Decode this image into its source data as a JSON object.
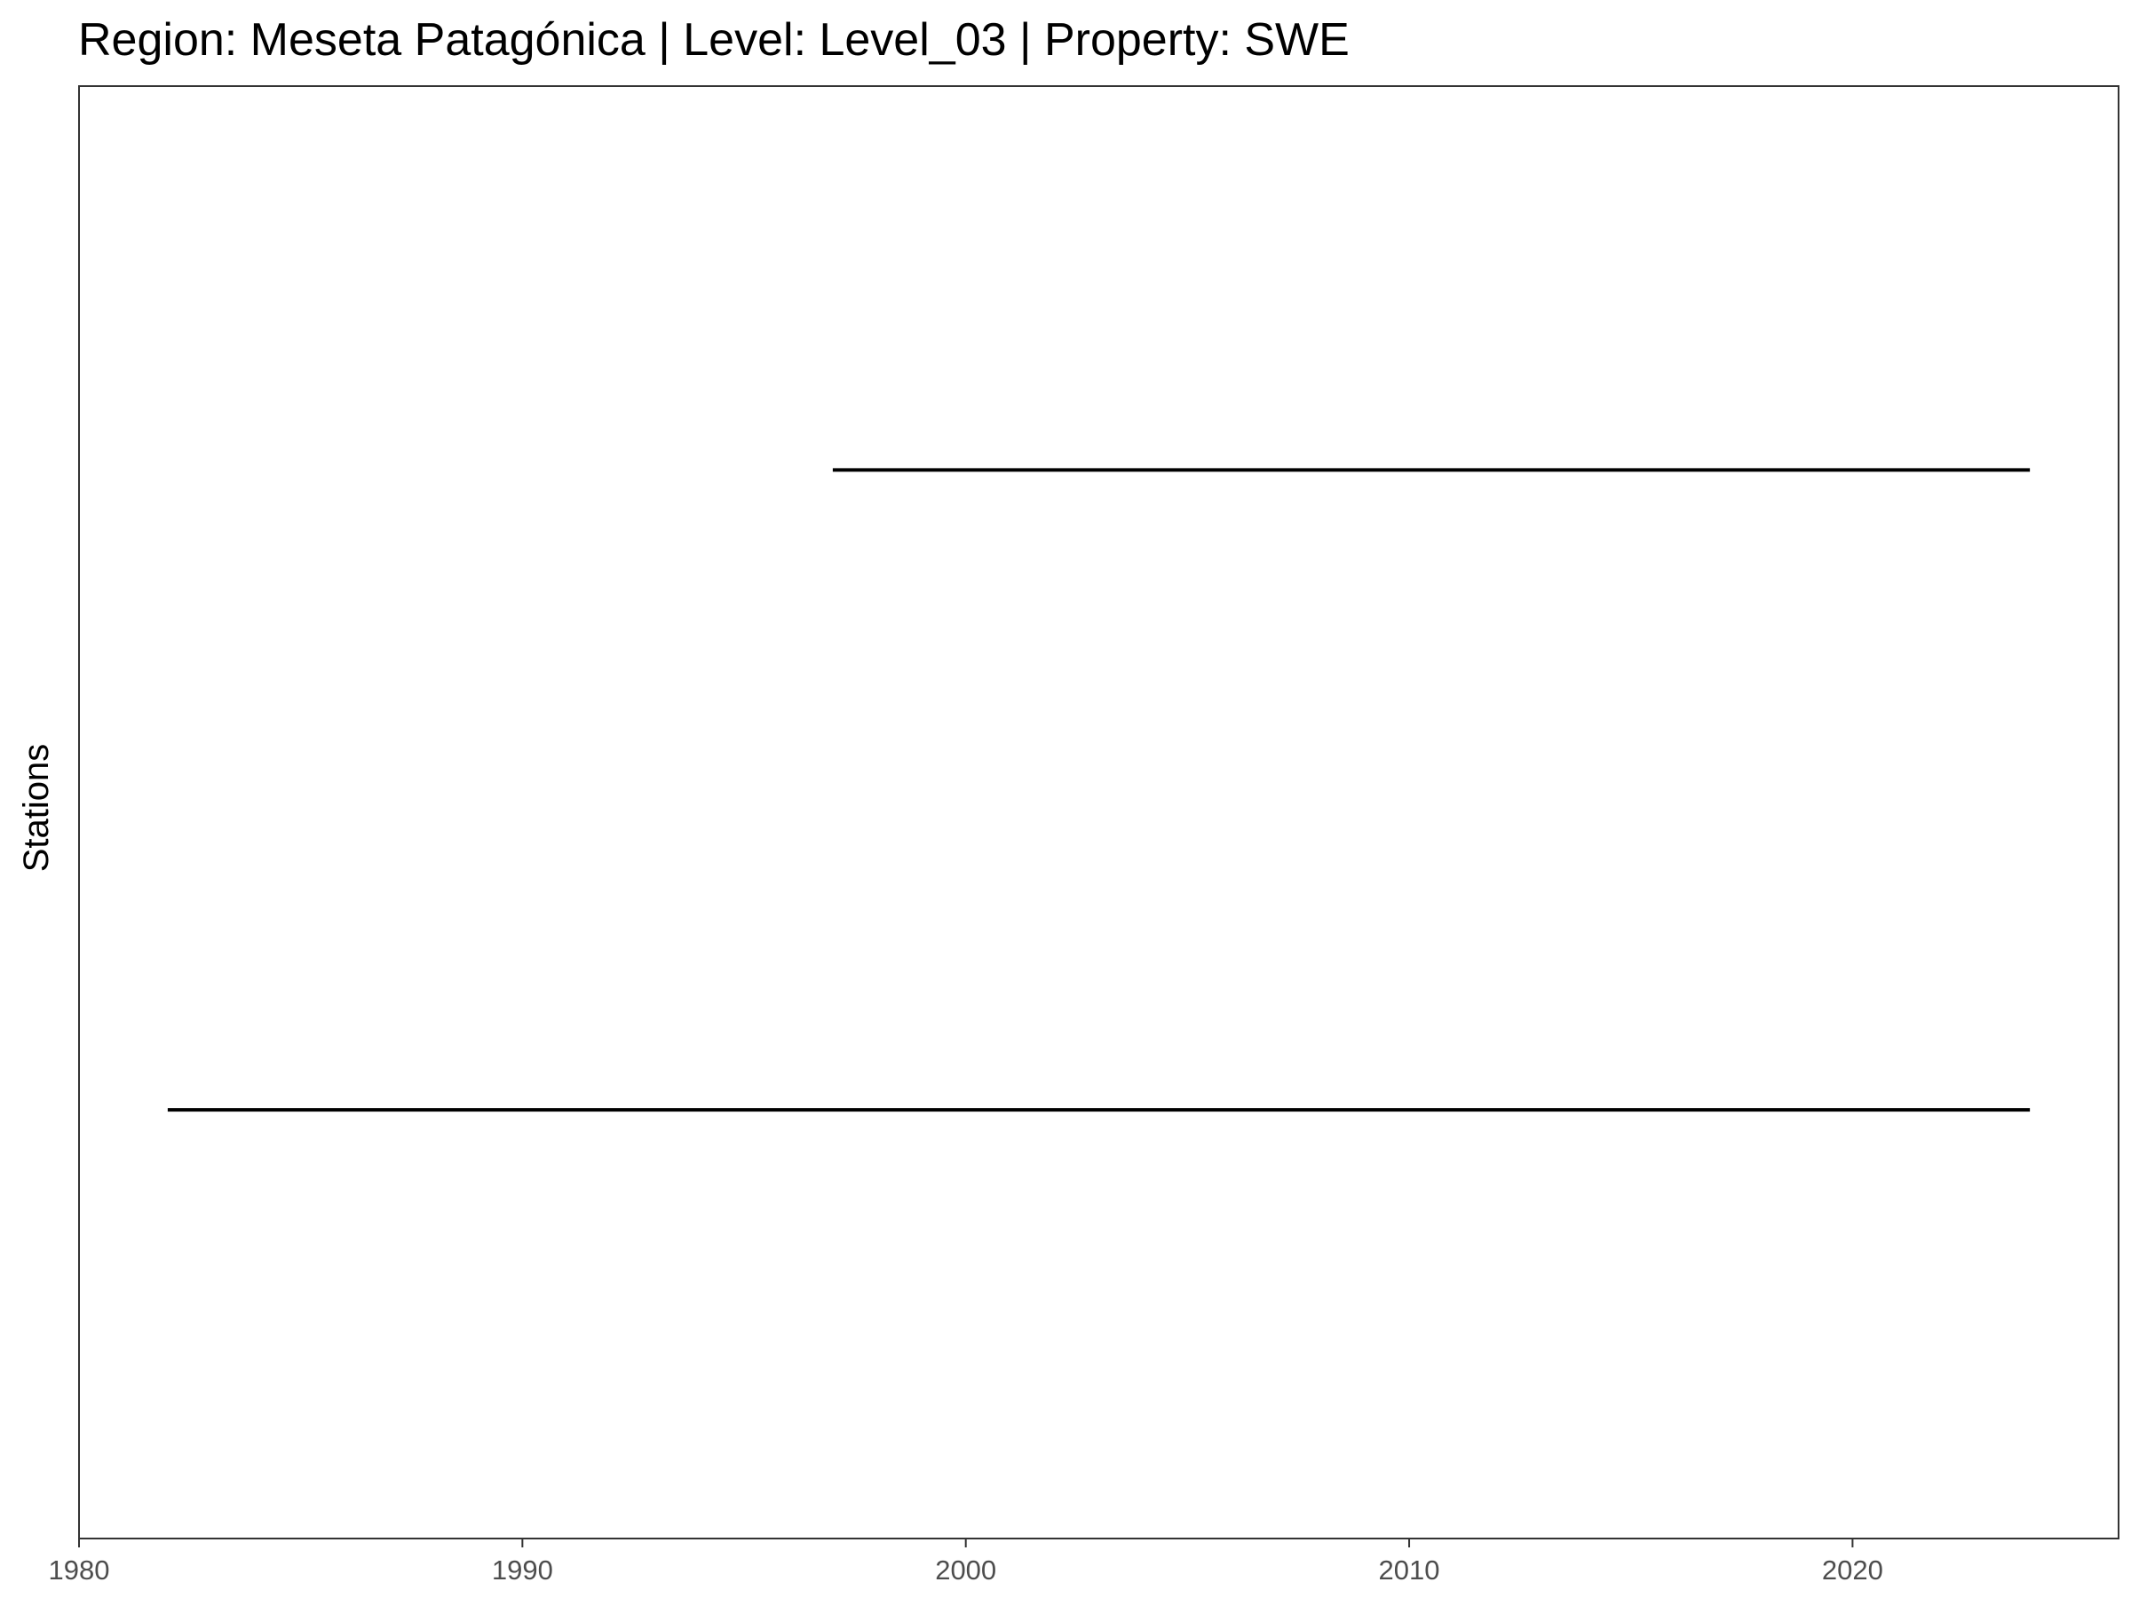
{
  "chart_data": {
    "type": "line",
    "title": "Region: Meseta Patagónica | Level: Level_03 | Property: SWE",
    "xlabel": "",
    "ylabel": "Stations",
    "xlim": [
      1980,
      2026
    ],
    "x_ticks": [
      1980,
      1990,
      2000,
      2010,
      2020
    ],
    "y_ticks_shown": false,
    "grid": false,
    "series": [
      {
        "x": [
          1982,
          2024
        ],
        "y": [
          1,
          1
        ],
        "color": "#000000"
      },
      {
        "x": [
          1997,
          2024
        ],
        "y": [
          2,
          2
        ],
        "color": "#000000"
      }
    ],
    "ylim": [
      0.33,
      2.6
    ]
  }
}
